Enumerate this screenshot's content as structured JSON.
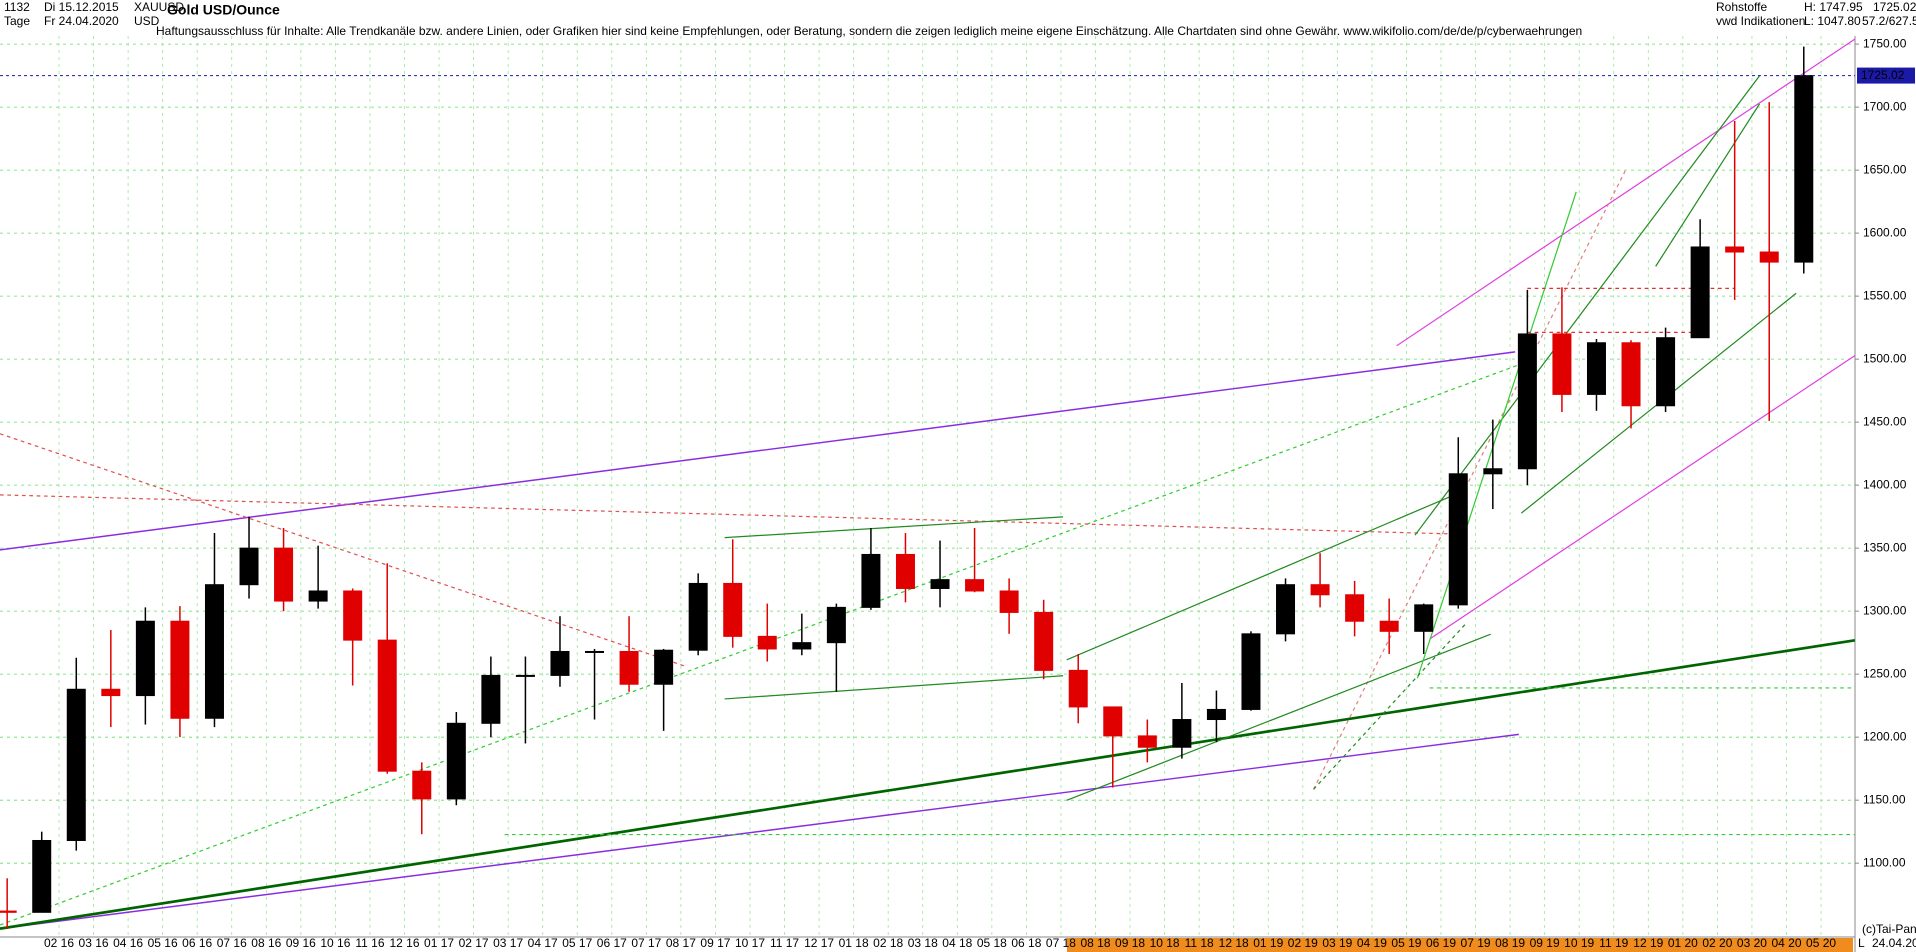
{
  "header": {
    "count": "1132",
    "start": "Di 15.12.2015",
    "symbol": "XAUUSD",
    "period": "Tage",
    "end": "Fr 24.04.2020",
    "currency": "USD",
    "disclaimer": "Haftungsausschluss für Inhalte: Alle Trendkanäle bzw. andere Linien, oder Grafiken hier sind keine Empfehlungen, oder Beratung, sondern die zeigen lediglich meine eigene Einschätzung. Alle Chartdaten sind ohne Gewähr.  www.wikifolio.com/de/de/p/cyberwaehrungen",
    "group": "Rohstoffe",
    "source": "vwd Indikationen",
    "high": "H: 1747.95",
    "low": "L: 1047.80",
    "ratio": "57.2/627.5",
    "copyright": "(c)Tai-Pan",
    "date": "24.04.20",
    "scale_mode": "L"
  },
  "chart_data": {
    "type": "candlestick",
    "title": "Gold USD/Ounce",
    "categories": [
      null,
      null,
      "02 16",
      "03 16",
      "04 16",
      "05 16",
      "06 16",
      "07 16",
      "08 16",
      "09 16",
      "10 16",
      "11 16",
      "12 16",
      "01 17",
      "02 17",
      "03 17",
      "04 17",
      "05 17",
      "06 17",
      "07 17",
      "08 17",
      "09 17",
      "10 17",
      "11 17",
      "12 17",
      "01 18",
      "02 18",
      "03 18",
      "04 18",
      "05 18",
      "06 18",
      "07 18",
      "08 18",
      "09 18",
      "10 18",
      "11 18",
      "12 18",
      "01 19",
      "02 19",
      "03 19",
      "04 19",
      "05 19",
      "06 19",
      "07 19",
      "08 19",
      "09 19",
      "10 19",
      "11 19",
      "12 19",
      "01 20",
      "02 20",
      "03 20",
      "04 20",
      "05 20"
    ],
    "open": [
      1062,
      1061,
      1118,
      1238,
      1233,
      1292,
      1215,
      1321,
      1350,
      1308,
      1316,
      1277,
      1173,
      1151,
      1211,
      1249,
      1249,
      1268,
      1268,
      1242,
      1269,
      1322,
      1280,
      1270,
      1275,
      1303,
      1345,
      1318,
      1325,
      1316,
      1299,
      1253,
      1224,
      1201,
      1192,
      1214,
      1222,
      1282,
      1321,
      1313,
      1292,
      1284,
      1305,
      1409,
      1413,
      1520,
      1472,
      1513,
      1463,
      1517,
      1589,
      1585,
      1577,
      null
    ],
    "high": [
      1088,
      1125,
      1263,
      1285,
      1303,
      1304,
      1362,
      1375,
      1366,
      1352,
      1318,
      1338,
      1180,
      1220,
      1264,
      1264,
      1296,
      1270,
      1296,
      1270,
      1330,
      1357,
      1306,
      1298,
      1306,
      1366,
      1362,
      1356,
      1366,
      1326,
      1309,
      1266,
      1224,
      1214,
      1243,
      1237,
      1284,
      1326,
      1346,
      1324,
      1310,
      1306,
      1438,
      1452,
      1555,
      1557,
      1516,
      1515,
      1525,
      1611,
      1689,
      1704,
      1747.95,
      null
    ],
    "low": [
      1047.8,
      1062,
      1110,
      1208,
      1210,
      1200,
      1208,
      1310,
      1300,
      1302,
      1241,
      1171,
      1123,
      1146,
      1200,
      1195,
      1240,
      1214,
      1236,
      1205,
      1265,
      1271,
      1260,
      1265,
      1236,
      1301,
      1307,
      1303,
      1315,
      1282,
      1246,
      1211,
      1160,
      1180,
      1183,
      1196,
      1221,
      1276,
      1303,
      1280,
      1266,
      1266,
      1302,
      1381,
      1400,
      1458,
      1459,
      1445,
      1458,
      1517,
      1547,
      1451,
      1568,
      null
    ],
    "close": [
      1061,
      1118,
      1238,
      1233,
      1292,
      1215,
      1321,
      1350,
      1308,
      1316,
      1277,
      1173,
      1151,
      1211,
      1249,
      1249,
      1268,
      1268,
      1242,
      1269,
      1322,
      1280,
      1270,
      1275,
      1303,
      1345,
      1318,
      1325,
      1316,
      1299,
      1253,
      1224,
      1201,
      1192,
      1214,
      1222,
      1282,
      1321,
      1313,
      1292,
      1284,
      1305,
      1409,
      1413,
      1520,
      1472,
      1513,
      1463,
      1517,
      1589,
      1585,
      1577,
      1725.02,
      null
    ],
    "up_color": "#000000",
    "down_color": "#e00000",
    "current_price": 1725.02,
    "ylim": [
      1043,
      1785
    ],
    "yticks": [
      {
        "value": 1100,
        "label": "1100.00"
      },
      {
        "value": 1150,
        "label": "1150.00"
      },
      {
        "value": 1200,
        "label": "1200.00"
      },
      {
        "value": 1250,
        "label": "1250.00"
      },
      {
        "value": 1300,
        "label": "1300.00"
      },
      {
        "value": 1350,
        "label": "1350.00"
      },
      {
        "value": 1400,
        "label": "1400.00"
      },
      {
        "value": 1450,
        "label": "1450.00"
      },
      {
        "value": 1500,
        "label": "1500.00"
      },
      {
        "value": 1550,
        "label": "1550.00"
      },
      {
        "value": 1600,
        "label": "1600.00"
      },
      {
        "value": 1650,
        "label": "1650.00"
      },
      {
        "value": 1700,
        "label": "1700.00"
      },
      {
        "value": 1750,
        "label": "1750.00"
      }
    ],
    "grid": true
  }
}
